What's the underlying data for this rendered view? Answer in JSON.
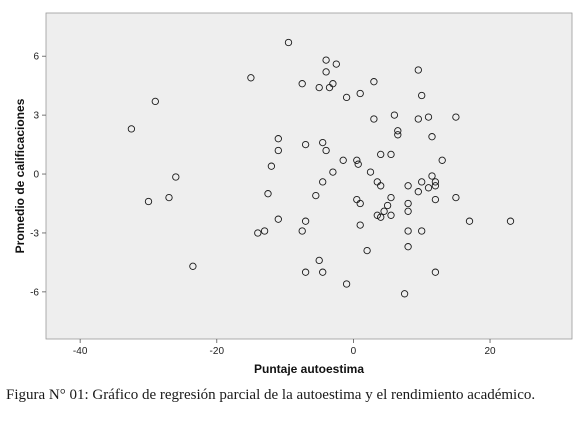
{
  "caption": "Figura N° 01: Gráfico de regresión parcial de la autoestima y el rendimiento académico.",
  "chart_data": {
    "type": "scatter",
    "title": "",
    "xlabel": "Puntaje autoestima",
    "ylabel": "Promedio de calificaciones",
    "xlim": [
      -45,
      32
    ],
    "ylim": [
      -8.4,
      8.2
    ],
    "xticks": [
      -40,
      -20,
      0,
      20
    ],
    "yticks": [
      -6,
      -3,
      0,
      3,
      6
    ],
    "xtick_labels": [
      "-40",
      "-20",
      "0",
      "20"
    ],
    "ytick_labels": [
      "-6",
      "-3",
      "0",
      "3",
      "6"
    ],
    "grid": false,
    "legend": "none",
    "plot_background": "#eeeeee",
    "marker": "open-circle",
    "points": [
      {
        "x": -32.5,
        "y": 2.3
      },
      {
        "x": -29,
        "y": 3.7
      },
      {
        "x": -30,
        "y": -1.4
      },
      {
        "x": -27,
        "y": -1.2
      },
      {
        "x": -26,
        "y": -0.15
      },
      {
        "x": -23.5,
        "y": -4.7
      },
      {
        "x": -15,
        "y": 4.9
      },
      {
        "x": -9.5,
        "y": 6.7
      },
      {
        "x": -7.5,
        "y": 4.6
      },
      {
        "x": -5,
        "y": 4.4
      },
      {
        "x": -4,
        "y": 5.8
      },
      {
        "x": -4,
        "y": 5.2
      },
      {
        "x": -3.5,
        "y": 4.4
      },
      {
        "x": -3,
        "y": 4.6
      },
      {
        "x": -2.5,
        "y": 5.6
      },
      {
        "x": -1,
        "y": 3.9
      },
      {
        "x": 1,
        "y": 4.1
      },
      {
        "x": 3,
        "y": 4.7
      },
      {
        "x": 9.5,
        "y": 5.3
      },
      {
        "x": 10,
        "y": 4
      },
      {
        "x": -11,
        "y": 1.8
      },
      {
        "x": -12,
        "y": 0.4
      },
      {
        "x": -11,
        "y": 1.2
      },
      {
        "x": -7,
        "y": 1.5
      },
      {
        "x": -4.5,
        "y": 1.6
      },
      {
        "x": -4,
        "y": 1.2
      },
      {
        "x": -3,
        "y": 0.1
      },
      {
        "x": -4.5,
        "y": -0.4
      },
      {
        "x": -1.5,
        "y": 0.7
      },
      {
        "x": 0.5,
        "y": 0.7
      },
      {
        "x": 0.7,
        "y": 0.5
      },
      {
        "x": 2.5,
        "y": 0.1
      },
      {
        "x": 3,
        "y": 2.8
      },
      {
        "x": 4,
        "y": 1
      },
      {
        "x": 5.5,
        "y": 1
      },
      {
        "x": 6,
        "y": 3
      },
      {
        "x": 6.5,
        "y": 2.2
      },
      {
        "x": 6.5,
        "y": 2
      },
      {
        "x": 9.5,
        "y": 2.8
      },
      {
        "x": 11,
        "y": 2.9
      },
      {
        "x": 11.5,
        "y": 1.9
      },
      {
        "x": 15,
        "y": 2.9
      },
      {
        "x": 13,
        "y": 0.7
      },
      {
        "x": 11.5,
        "y": -0.1
      },
      {
        "x": 12,
        "y": -0.4
      },
      {
        "x": 11,
        "y": -0.7
      },
      {
        "x": 12,
        "y": -0.6
      },
      {
        "x": 10,
        "y": -0.4
      },
      {
        "x": 8,
        "y": -0.6
      },
      {
        "x": 9.5,
        "y": -0.9
      },
      {
        "x": 3.5,
        "y": -0.4
      },
      {
        "x": 4,
        "y": -0.6
      },
      {
        "x": 15,
        "y": -1.2
      },
      {
        "x": 12,
        "y": -1.3
      },
      {
        "x": 8,
        "y": -1.5
      },
      {
        "x": 5,
        "y": -1.6
      },
      {
        "x": 5.5,
        "y": -1.2
      },
      {
        "x": 1,
        "y": -1.5
      },
      {
        "x": 0.5,
        "y": -1.3
      },
      {
        "x": -5.5,
        "y": -1.1
      },
      {
        "x": -12.5,
        "y": -1
      },
      {
        "x": -11,
        "y": -2.3
      },
      {
        "x": -7,
        "y": -2.4
      },
      {
        "x": -7.5,
        "y": -2.9
      },
      {
        "x": -13,
        "y": -2.9
      },
      {
        "x": -14,
        "y": -3
      },
      {
        "x": 1,
        "y": -2.6
      },
      {
        "x": 3.5,
        "y": -2.1
      },
      {
        "x": 4,
        "y": -2.2
      },
      {
        "x": 4.5,
        "y": -1.9
      },
      {
        "x": 5.5,
        "y": -2.1
      },
      {
        "x": 8,
        "y": -1.9
      },
      {
        "x": 8,
        "y": -2.9
      },
      {
        "x": 10,
        "y": -2.9
      },
      {
        "x": 8,
        "y": -3.7
      },
      {
        "x": 17,
        "y": -2.4
      },
      {
        "x": 23,
        "y": -2.4
      },
      {
        "x": 2,
        "y": -3.9
      },
      {
        "x": -5,
        "y": -4.4
      },
      {
        "x": -7,
        "y": -5
      },
      {
        "x": -4.5,
        "y": -5
      },
      {
        "x": -1,
        "y": -5.6
      },
      {
        "x": 7.5,
        "y": -6.1
      },
      {
        "x": 12,
        "y": -5
      }
    ]
  }
}
